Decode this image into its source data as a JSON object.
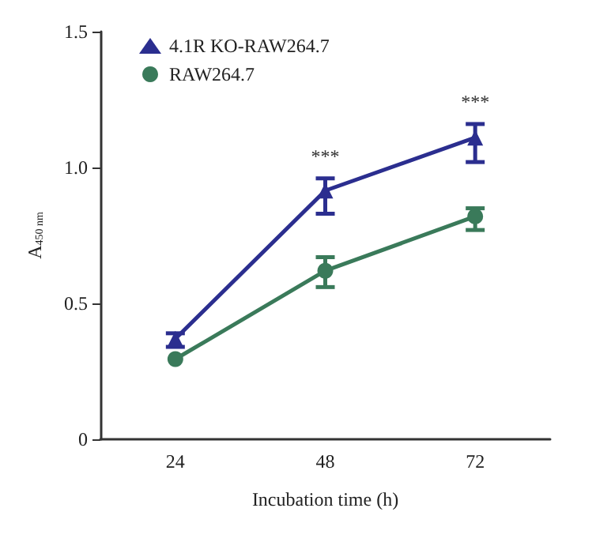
{
  "chart_data": {
    "type": "line",
    "xlabel": "Incubation time (h)",
    "ylabel": "A$_{450 nm}$",
    "categories": [
      "24",
      "48",
      "72"
    ],
    "series": [
      {
        "name": "4.1R KO-RAW264.7",
        "color": "#2b2e8f",
        "marker": "triangle",
        "values": [
          0.37,
          0.915,
          1.11
        ],
        "errors": [
          [
            0.34,
            0.39
          ],
          [
            0.83,
            0.96
          ],
          [
            1.02,
            1.16
          ]
        ]
      },
      {
        "name": "RAW264.7",
        "color": "#3a7a5a",
        "marker": "circle",
        "values": [
          0.295,
          0.62,
          0.82
        ],
        "errors": [
          null,
          [
            0.56,
            0.67
          ],
          [
            0.77,
            0.85
          ]
        ]
      }
    ],
    "annotations": [
      "***",
      "***"
    ],
    "ylim": [
      0,
      1.5
    ],
    "yticks": [
      0,
      0.5,
      {
        "value": 1,
        "label": "1.0"
      },
      {
        "value": 1.5,
        "label": "1.5"
      }
    ],
    "grid": false,
    "legend": "top left",
    "line_style": "solid"
  }
}
